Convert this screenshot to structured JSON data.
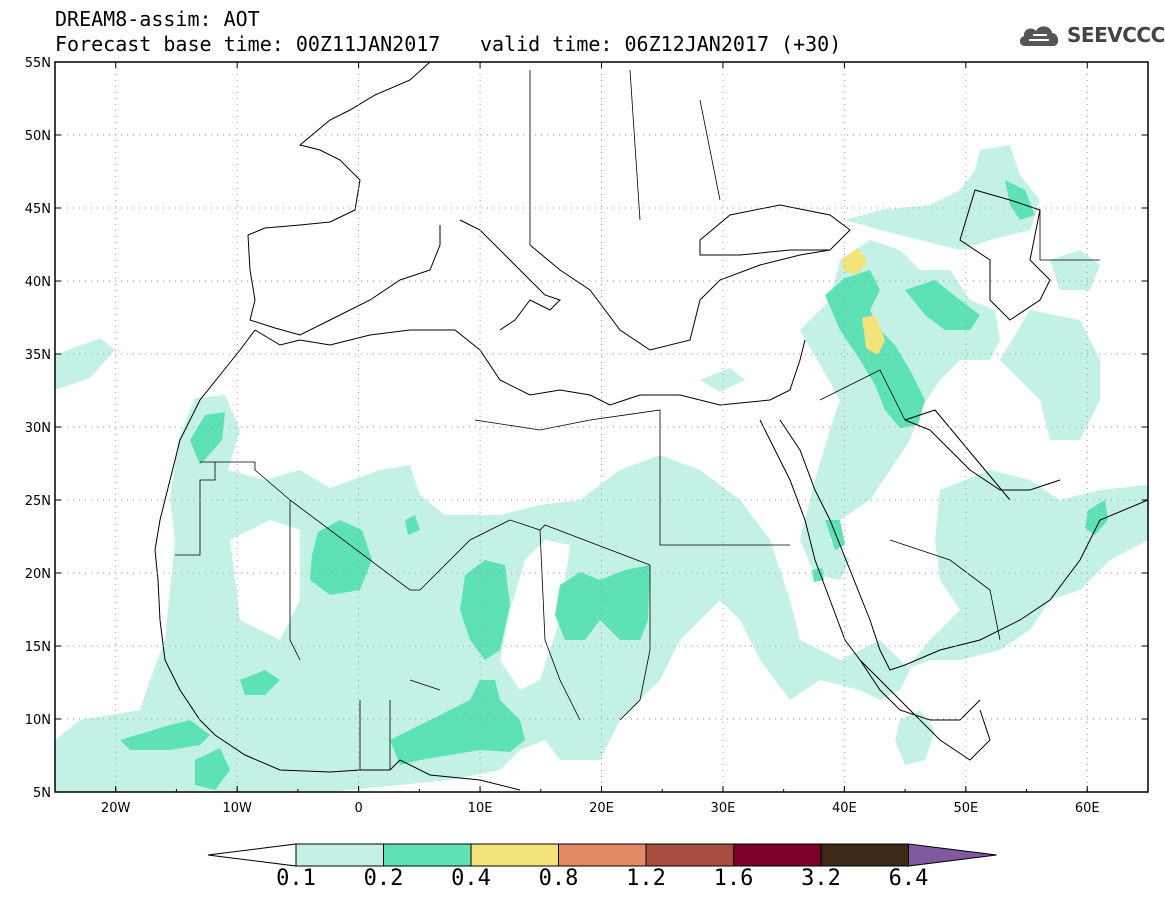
{
  "header": {
    "title": "DREAM8-assim: AOT",
    "base_time": "Forecast base time: 00Z11JAN2017",
    "valid_time": "valid time: 06Z12JAN2017 (+30)",
    "logo_text": "SEEVCCC"
  },
  "map": {
    "projection": "lat-lon",
    "lon_range": [
      -25,
      65
    ],
    "lat_range": [
      5,
      55
    ],
    "grid": "dotted",
    "lat_labels": [
      "55N",
      "50N",
      "45N",
      "40N",
      "35N",
      "30N",
      "25N",
      "20N",
      "15N",
      "10N",
      "5N"
    ],
    "lon_labels": [
      "20W",
      "10W",
      "0",
      "10E",
      "20E",
      "30E",
      "40E",
      "50E",
      "60E"
    ],
    "field_colors": {
      "0.1-0.2": "#c4f1e6",
      "0.2-0.4": "#5ee1b4",
      "0.4-0.8": "#f3e47a"
    }
  },
  "colorbar": {
    "labels": [
      "0.1",
      "0.2",
      "0.4",
      "0.8",
      "1.2",
      "1.6",
      "3.2",
      "6.4"
    ],
    "colors": [
      "#ffffff",
      "#c4f1e6",
      "#5ee1b4",
      "#f3e47a",
      "#e38a64",
      "#a94d3f",
      "#7a0028",
      "#3e2918",
      "#7f5aa1"
    ]
  }
}
